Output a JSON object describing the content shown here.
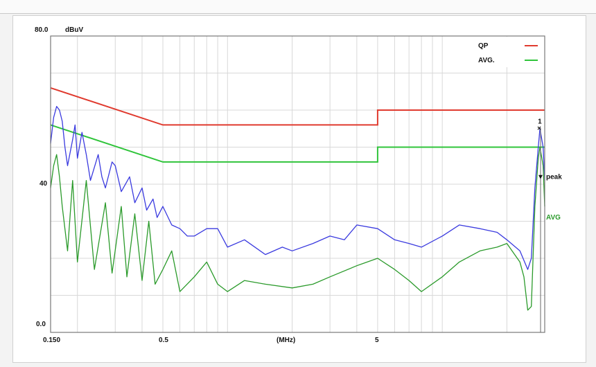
{
  "chart_data": {
    "type": "line",
    "xlabel": "(MHz)",
    "yunit": "dBuV",
    "xscale": "log",
    "xlim": [
      0.15,
      30
    ],
    "ylim": [
      0,
      80
    ],
    "x_tick_labels": [
      "0.150",
      "0.5",
      "5"
    ],
    "y_tick_labels": [
      "80.0",
      "40",
      "0.0"
    ],
    "grid": true,
    "legend": {
      "placement": "top-right",
      "entries": [
        {
          "name": "QP",
          "color": "#e03a2e"
        },
        {
          "name": "AVG.",
          "color": "#2fc43a"
        }
      ]
    },
    "limits": [
      {
        "name": "QP",
        "color": "#e03a2e",
        "points": [
          [
            0.15,
            66
          ],
          [
            0.5,
            56
          ],
          [
            5,
            56
          ],
          [
            5,
            60
          ],
          [
            30,
            60
          ]
        ]
      },
      {
        "name": "AVG.",
        "color": "#2fc43a",
        "points": [
          [
            0.15,
            56
          ],
          [
            0.5,
            46
          ],
          [
            5,
            46
          ],
          [
            5,
            50
          ],
          [
            30,
            50
          ]
        ]
      }
    ],
    "series": [
      {
        "name": "peak",
        "color": "#3a3adf",
        "points": [
          [
            0.15,
            51
          ],
          [
            0.155,
            58
          ],
          [
            0.16,
            61
          ],
          [
            0.165,
            60
          ],
          [
            0.17,
            57
          ],
          [
            0.175,
            50
          ],
          [
            0.18,
            45
          ],
          [
            0.19,
            52
          ],
          [
            0.195,
            56
          ],
          [
            0.2,
            47
          ],
          [
            0.21,
            54
          ],
          [
            0.22,
            48
          ],
          [
            0.23,
            41
          ],
          [
            0.25,
            48
          ],
          [
            0.26,
            42
          ],
          [
            0.27,
            39
          ],
          [
            0.29,
            46
          ],
          [
            0.3,
            45
          ],
          [
            0.32,
            38
          ],
          [
            0.35,
            42
          ],
          [
            0.37,
            35
          ],
          [
            0.4,
            39
          ],
          [
            0.42,
            33
          ],
          [
            0.45,
            36
          ],
          [
            0.47,
            31
          ],
          [
            0.5,
            34
          ],
          [
            0.55,
            29
          ],
          [
            0.6,
            28
          ],
          [
            0.65,
            26
          ],
          [
            0.7,
            26
          ],
          [
            0.8,
            28
          ],
          [
            0.9,
            28
          ],
          [
            1.0,
            23
          ],
          [
            1.2,
            25
          ],
          [
            1.5,
            21
          ],
          [
            1.8,
            23
          ],
          [
            2.0,
            22
          ],
          [
            2.5,
            24
          ],
          [
            3.0,
            26
          ],
          [
            3.5,
            25
          ],
          [
            4.0,
            29
          ],
          [
            5.0,
            28
          ],
          [
            6.0,
            25
          ],
          [
            7.0,
            24
          ],
          [
            8.0,
            23
          ],
          [
            10,
            26
          ],
          [
            12,
            29
          ],
          [
            15,
            28
          ],
          [
            18,
            27
          ],
          [
            20,
            25
          ],
          [
            23,
            22
          ],
          [
            25,
            17
          ],
          [
            26,
            20
          ],
          [
            27,
            39
          ],
          [
            28,
            50
          ],
          [
            28.5,
            55
          ],
          [
            29.5,
            50
          ],
          [
            30,
            41
          ]
        ]
      },
      {
        "name": "AVG",
        "color": "#2a9a2a",
        "points": [
          [
            0.15,
            39
          ],
          [
            0.155,
            45
          ],
          [
            0.16,
            48
          ],
          [
            0.165,
            42
          ],
          [
            0.17,
            34
          ],
          [
            0.18,
            22
          ],
          [
            0.19,
            41
          ],
          [
            0.2,
            19
          ],
          [
            0.22,
            41
          ],
          [
            0.24,
            17
          ],
          [
            0.27,
            35
          ],
          [
            0.29,
            16
          ],
          [
            0.32,
            34
          ],
          [
            0.34,
            15
          ],
          [
            0.37,
            32
          ],
          [
            0.4,
            14
          ],
          [
            0.43,
            30
          ],
          [
            0.46,
            13
          ],
          [
            0.5,
            17
          ],
          [
            0.55,
            22
          ],
          [
            0.6,
            11
          ],
          [
            0.7,
            15
          ],
          [
            0.8,
            19
          ],
          [
            0.9,
            13
          ],
          [
            1.0,
            11
          ],
          [
            1.2,
            14
          ],
          [
            1.5,
            13
          ],
          [
            2.0,
            12
          ],
          [
            2.5,
            13
          ],
          [
            3.0,
            15
          ],
          [
            4.0,
            18
          ],
          [
            5.0,
            20
          ],
          [
            6.0,
            17
          ],
          [
            7.0,
            14
          ],
          [
            8.0,
            11
          ],
          [
            10,
            15
          ],
          [
            12,
            19
          ],
          [
            15,
            22
          ],
          [
            18,
            23
          ],
          [
            20,
            24
          ],
          [
            23,
            19
          ],
          [
            24,
            15
          ],
          [
            25,
            6
          ],
          [
            26,
            7
          ],
          [
            27,
            34
          ],
          [
            28,
            47
          ],
          [
            28.5,
            50
          ],
          [
            29.5,
            45
          ],
          [
            30,
            34
          ]
        ]
      }
    ],
    "annotations": [
      {
        "text": "1",
        "x": 28.5,
        "y": 56
      },
      {
        "text": "peak",
        "x": 29,
        "y": 42
      },
      {
        "text": "AVG",
        "x": 29.5,
        "y": 31
      }
    ]
  }
}
